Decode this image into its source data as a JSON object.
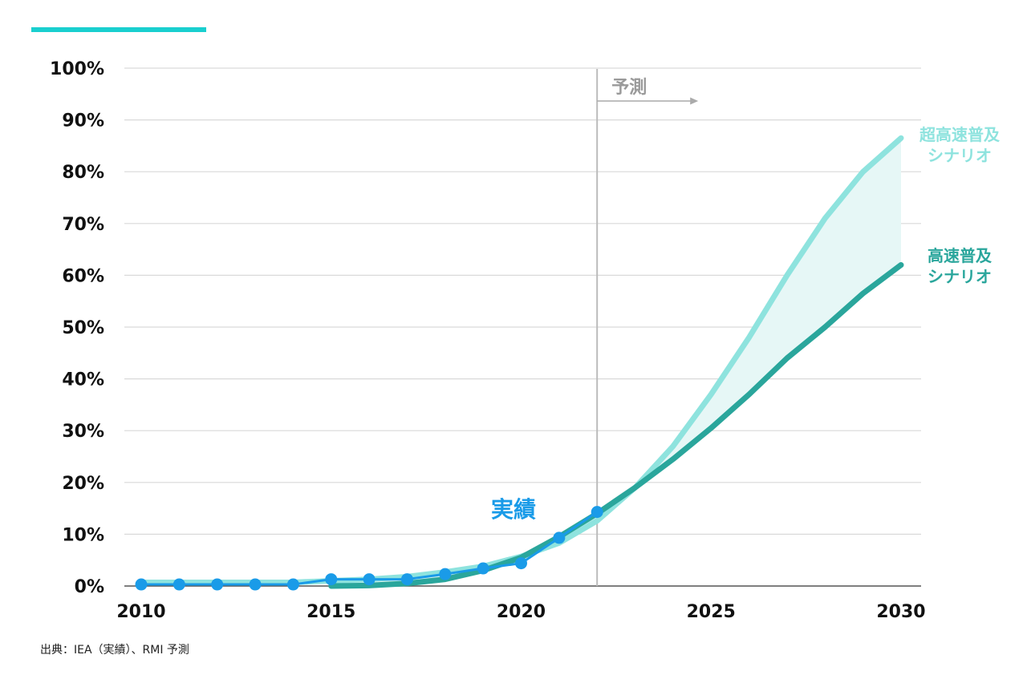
{
  "source_note": "出典：IEA（実績）、RMI 予測",
  "colors": {
    "accent": "#19cfcf",
    "actual": "#1a9be8",
    "fast": "#2aa69c",
    "ultra_fast": "#8ee3de",
    "band": "#e6f7f6",
    "grid": "#d9d9d9",
    "forecast_line": "#bbbbbb"
  },
  "chart_data": {
    "type": "line",
    "xlim": [
      2010,
      2030
    ],
    "ylim": [
      0,
      100
    ],
    "x_ticks": [
      2010,
      2015,
      2020,
      2025,
      2030
    ],
    "x_tick_labels": [
      "2010",
      "2015",
      "2020",
      "2025",
      "2030"
    ],
    "y_ticks": [
      0,
      10,
      20,
      30,
      40,
      50,
      60,
      70,
      80,
      90,
      100
    ],
    "y_tick_labels": [
      "0%",
      "10%",
      "20%",
      "30%",
      "40%",
      "50%",
      "60%",
      "70%",
      "80%",
      "90%",
      "100%"
    ],
    "grid": true,
    "forecast_start": 2022,
    "forecast_label": "予測",
    "series": [
      {
        "key": "actual",
        "name": "実績",
        "x": [
          2010,
          2011,
          2012,
          2013,
          2014,
          2015,
          2016,
          2017,
          2018,
          2019,
          2020,
          2021,
          2022
        ],
        "y": [
          0.3,
          0.3,
          0.3,
          0.3,
          0.3,
          1.3,
          1.3,
          1.3,
          2.3,
          3.4,
          4.4,
          9.3,
          14.3
        ]
      },
      {
        "key": "ultra_fast",
        "name": "超高速普及 シナリオ",
        "name_lines": [
          "超高速普及",
          "シナリオ"
        ],
        "x": [
          2010,
          2012,
          2014,
          2016,
          2017,
          2018,
          2019,
          2020,
          2021,
          2022,
          2023,
          2024,
          2025,
          2026,
          2027,
          2028,
          2029,
          2030
        ],
        "y": [
          0.7,
          0.7,
          0.7,
          1.3,
          1.8,
          2.7,
          3.8,
          5.7,
          8.3,
          12.6,
          19,
          27,
          37,
          48,
          60,
          71,
          80,
          86.5
        ]
      },
      {
        "key": "fast",
        "name": "高速普及 シナリオ",
        "name_lines": [
          "高速普及",
          "シナリオ"
        ],
        "x": [
          2015,
          2016,
          2017,
          2018,
          2019,
          2020,
          2021,
          2022,
          2023,
          2024,
          2025,
          2026,
          2027,
          2028,
          2029,
          2030
        ],
        "y": [
          0,
          0.1,
          0.5,
          1.3,
          3,
          5.5,
          9.5,
          14,
          19,
          24.5,
          30.5,
          37,
          44,
          50,
          56.5,
          62
        ]
      }
    ]
  }
}
